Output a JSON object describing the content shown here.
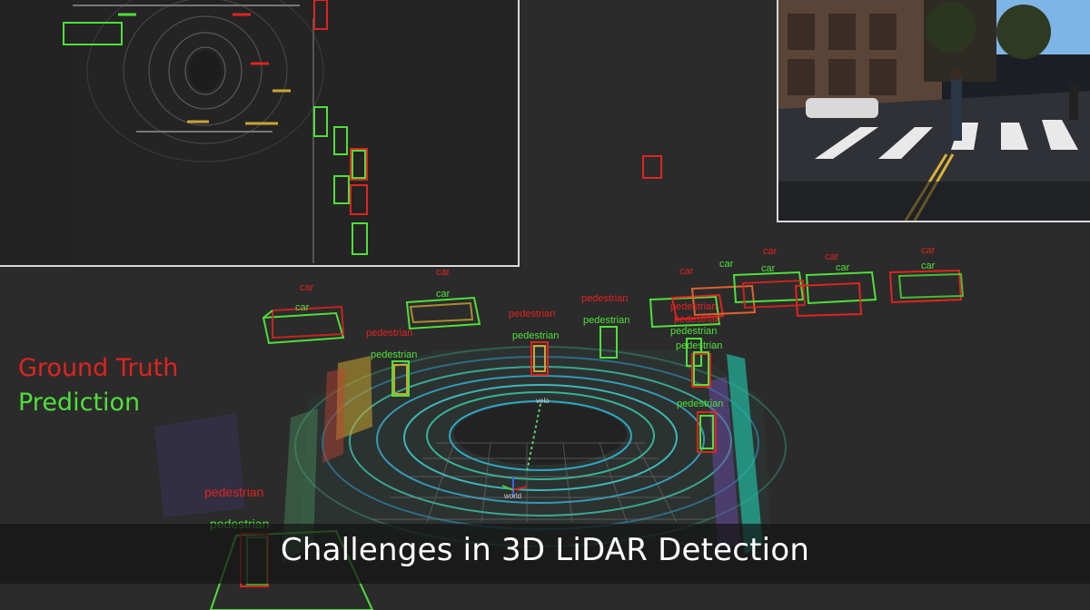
{
  "legend": {
    "ground_truth": "Ground Truth",
    "prediction": "Prediction"
  },
  "caption": "Challenges in 3D LiDAR Detection",
  "colors": {
    "ground_truth": "#e0231f",
    "prediction": "#4fe03a",
    "background": "#2b2b2b"
  },
  "scene": {
    "frame_labels": {
      "sensor_frame": "velo",
      "world_frame": "world"
    },
    "labels": {
      "car": "car",
      "pedestrian": "pedestrian"
    }
  }
}
